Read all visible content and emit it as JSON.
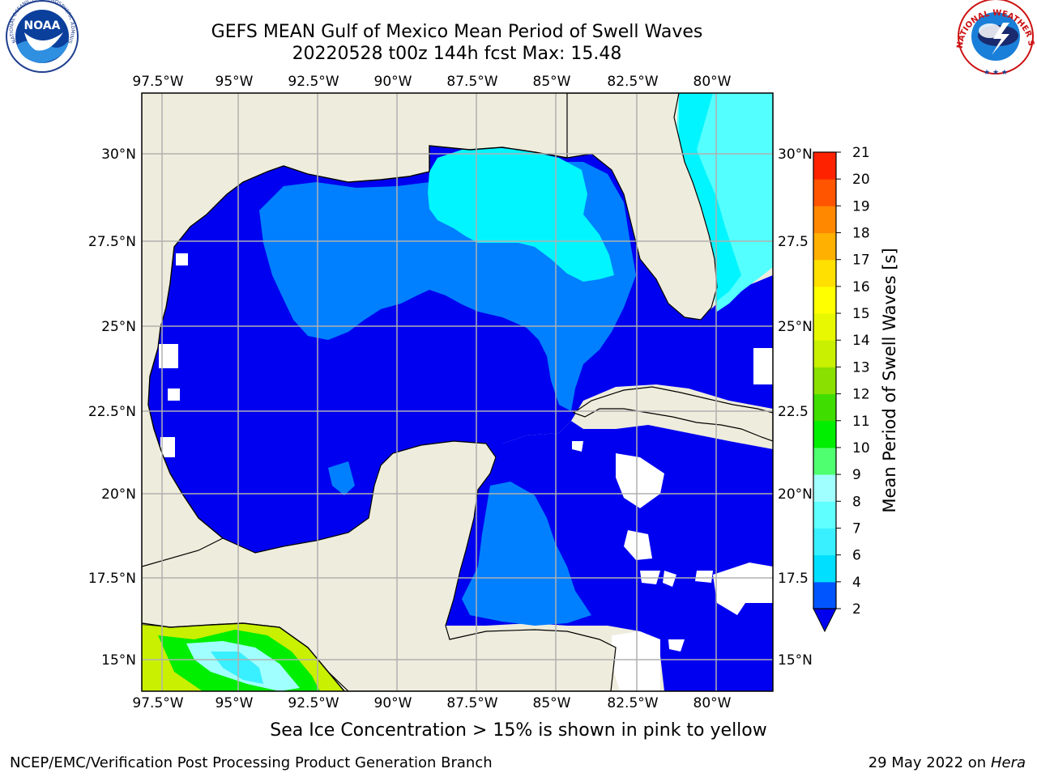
{
  "title": {
    "line1": "GEFS MEAN Gulf of Mexico Mean Period of Swell Waves",
    "line2": "20220528 t00z 144h fcst   Max: 15.48"
  },
  "logos": {
    "noaa_text": "NOAA",
    "noaa_ring_text": "NATIONAL OCEANIC AND ATMOSPHERIC ADMINISTRATION · U.S. DEPARTMENT OF COMMERCE",
    "nws_ring_text": "NATIONAL WEATHER SERVICE"
  },
  "map": {
    "lon_labels": [
      "97.5°W",
      "95°W",
      "92.5°W",
      "90°W",
      "87.5°W",
      "85°W",
      "82.5°W",
      "80°W"
    ],
    "lat_labels_left": [
      "30°N",
      "27.5°N",
      "25°N",
      "22.5°N",
      "20°N",
      "17.5°N",
      "15°N"
    ],
    "lat_labels_right": [
      "30°N",
      "27.5",
      "25°N",
      "22.5",
      "20°N",
      "17.5",
      "15°N"
    ],
    "colors": {
      "land": "#eeecdc",
      "coast": "#000000",
      "grid": "#b0b0b0",
      "period_2_4": "#0000f0",
      "period_4_6": "#0080ff",
      "period_6_8": "#00f5ff",
      "period_8_10": "#54ffff",
      "no_data": "#ffffff"
    }
  },
  "colorbar": {
    "label": "Mean Period of Swell Waves [s]",
    "ticks": [
      "2",
      "4",
      "6",
      "7",
      "8",
      "9",
      "10",
      "11",
      "12",
      "13",
      "14",
      "15",
      "16",
      "17",
      "18",
      "19",
      "20",
      "21"
    ],
    "colors": [
      "#0055ff",
      "#00dfff",
      "#38f0ff",
      "#60ffff",
      "#a0ffff",
      "#50ff70",
      "#00ee00",
      "#40dd00",
      "#8ae000",
      "#c8f000",
      "#e8f800",
      "#ffff00",
      "#ffe000",
      "#ffb000",
      "#ff8800",
      "#ff5500",
      "#ff2200"
    ],
    "extend_color": "#0000ee"
  },
  "footer": {
    "note": "Sea Ice Concentration > 15% is shown in pink to yellow",
    "credit": "NCEP/EMC/Verification Post Processing Product Generation Branch",
    "date": "29 May 2022 on",
    "machine": "Hera"
  }
}
